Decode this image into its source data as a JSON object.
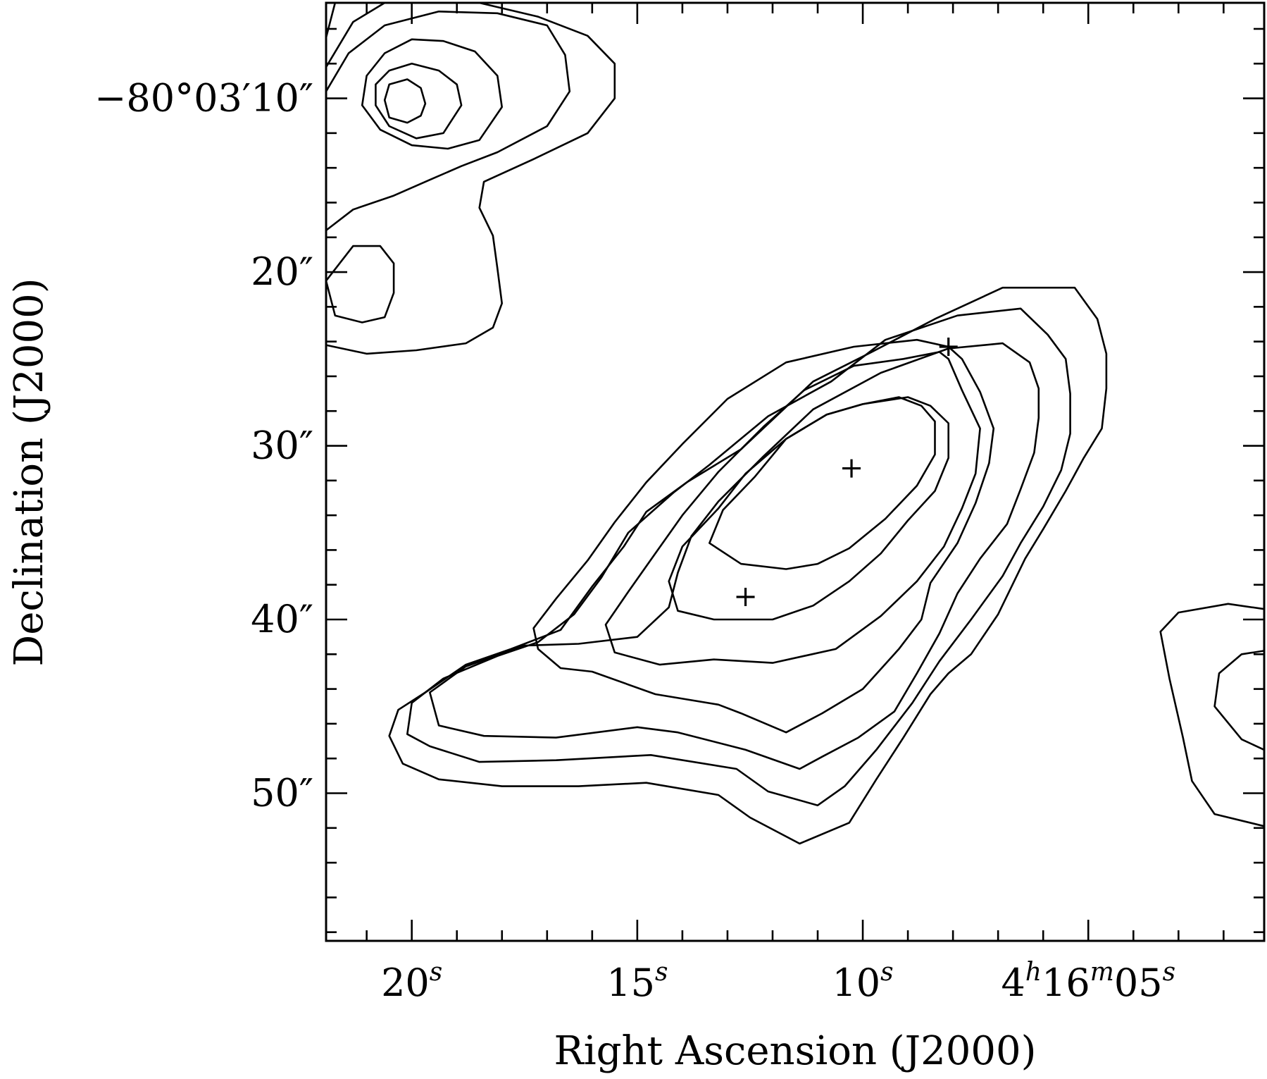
{
  "chart_data": {
    "type": "contour",
    "xlabel": "Right Ascension (J2000)",
    "ylabel": "Declination (J2000)",
    "x_ticks": [
      {
        "value": 20,
        "main": "20",
        "sup": "s"
      },
      {
        "value": 15,
        "main": "15",
        "sup": "s"
      },
      {
        "value": 10,
        "main": "10",
        "sup": "s"
      },
      {
        "value": 5,
        "main": "4",
        "sup": "h",
        "main2": "16",
        "sup2": "m",
        "main3": "05",
        "sup3": "s"
      }
    ],
    "y_ticks": [
      {
        "value": 10,
        "label": "−80°03′10″"
      },
      {
        "value": 20,
        "label": "20″"
      },
      {
        "value": 30,
        "label": "30″"
      },
      {
        "value": 40,
        "label": "40″"
      },
      {
        "value": 50,
        "label": "50″"
      }
    ],
    "xlim": [
      21.9,
      1.1
    ],
    "ylim": [
      4.5,
      58.5
    ],
    "grid": false,
    "markers": [
      {
        "ra": 10.25,
        "dec": 31.3,
        "symbol": "+"
      },
      {
        "ra": 8.1,
        "dec": 24.3,
        "symbol": "+"
      },
      {
        "ra": 12.6,
        "dec": 38.7,
        "symbol": "+"
      }
    ],
    "contours": [
      {
        "name": "main-1",
        "closed": true,
        "points": [
          [
            11.4,
            52.9
          ],
          [
            12.5,
            51.4
          ],
          [
            13.2,
            50.1
          ],
          [
            14.8,
            49.4
          ],
          [
            16.3,
            49.6
          ],
          [
            18.0,
            49.6
          ],
          [
            19.4,
            49.2
          ],
          [
            20.2,
            48.3
          ],
          [
            20.5,
            46.7
          ],
          [
            20.3,
            45.2
          ],
          [
            19.7,
            44.2
          ],
          [
            18.8,
            42.6
          ],
          [
            17.8,
            41.7
          ],
          [
            16.7,
            40.6
          ],
          [
            16.0,
            38.1
          ],
          [
            15.3,
            35.8
          ],
          [
            14.8,
            33.8
          ],
          [
            13.9,
            32.1
          ],
          [
            12.7,
            30.2
          ],
          [
            11.1,
            26.3
          ],
          [
            9.8,
            24.6
          ],
          [
            8.4,
            22.7
          ],
          [
            6.9,
            20.9
          ],
          [
            5.3,
            20.9
          ],
          [
            4.8,
            22.7
          ],
          [
            4.6,
            24.7
          ],
          [
            4.6,
            26.7
          ],
          [
            4.7,
            29.0
          ],
          [
            5.1,
            30.7
          ],
          [
            5.5,
            32.6
          ],
          [
            6.0,
            34.8
          ],
          [
            6.4,
            36.5
          ],
          [
            7.0,
            39.7
          ],
          [
            7.6,
            42.0
          ],
          [
            8.1,
            43.1
          ],
          [
            8.5,
            44.3
          ],
          [
            9.1,
            46.8
          ],
          [
            9.7,
            49.2
          ],
          [
            10.3,
            51.7
          ]
        ]
      },
      {
        "name": "main-2",
        "closed": true,
        "points": [
          [
            11.0,
            50.7
          ],
          [
            12.1,
            49.9
          ],
          [
            12.8,
            48.6
          ],
          [
            14.7,
            47.8
          ],
          [
            16.8,
            48.1
          ],
          [
            18.5,
            48.2
          ],
          [
            19.6,
            47.3
          ],
          [
            20.1,
            46.6
          ],
          [
            20.0,
            44.8
          ],
          [
            19.3,
            43.4
          ],
          [
            18.1,
            42.1
          ],
          [
            17.2,
            41.3
          ],
          [
            16.4,
            39.7
          ],
          [
            15.8,
            37.6
          ],
          [
            15.2,
            35.0
          ],
          [
            14.2,
            32.7
          ],
          [
            13.4,
            31.1
          ],
          [
            12.1,
            28.3
          ],
          [
            10.7,
            26.3
          ],
          [
            9.5,
            23.9
          ],
          [
            7.9,
            22.5
          ],
          [
            6.5,
            22.1
          ],
          [
            5.9,
            23.6
          ],
          [
            5.5,
            25.0
          ],
          [
            5.4,
            27.0
          ],
          [
            5.4,
            29.3
          ],
          [
            5.6,
            31.4
          ],
          [
            6.0,
            33.5
          ],
          [
            6.5,
            35.6
          ],
          [
            6.9,
            37.5
          ],
          [
            7.6,
            40.0
          ],
          [
            8.3,
            42.4
          ],
          [
            8.9,
            44.8
          ],
          [
            9.7,
            47.5
          ],
          [
            10.4,
            49.6
          ]
        ]
      },
      {
        "name": "main-3",
        "closed": true,
        "points": [
          [
            11.4,
            48.6
          ],
          [
            12.6,
            47.5
          ],
          [
            14.1,
            46.5
          ],
          [
            15.0,
            46.2
          ],
          [
            16.8,
            46.8
          ],
          [
            18.4,
            46.7
          ],
          [
            19.4,
            46.1
          ],
          [
            19.6,
            44.2
          ],
          [
            18.8,
            42.7
          ],
          [
            17.5,
            41.5
          ],
          [
            16.3,
            41.4
          ],
          [
            15.0,
            41.0
          ],
          [
            14.3,
            39.3
          ],
          [
            14.1,
            37.3
          ],
          [
            13.8,
            35.2
          ],
          [
            13.2,
            33.2
          ],
          [
            12.2,
            30.6
          ],
          [
            11.1,
            27.9
          ],
          [
            9.6,
            25.8
          ],
          [
            8.1,
            24.4
          ],
          [
            6.9,
            24.1
          ],
          [
            6.3,
            25.2
          ],
          [
            6.1,
            26.7
          ],
          [
            6.1,
            28.4
          ],
          [
            6.2,
            30.4
          ],
          [
            6.5,
            32.5
          ],
          [
            6.8,
            34.5
          ],
          [
            7.4,
            36.5
          ],
          [
            7.9,
            38.5
          ],
          [
            8.3,
            40.8
          ],
          [
            8.8,
            43.1
          ],
          [
            9.3,
            45.3
          ],
          [
            10.1,
            46.8
          ],
          [
            10.9,
            47.9
          ]
        ]
      },
      {
        "name": "main-4",
        "closed": true,
        "points": [
          [
            11.7,
            46.5
          ],
          [
            12.7,
            45.4
          ],
          [
            13.2,
            44.9
          ],
          [
            14.6,
            44.3
          ],
          [
            16.0,
            43.0
          ],
          [
            16.7,
            42.8
          ],
          [
            17.2,
            41.7
          ],
          [
            17.3,
            40.5
          ],
          [
            16.8,
            38.8
          ],
          [
            16.1,
            36.6
          ],
          [
            15.5,
            34.4
          ],
          [
            14.8,
            32.1
          ],
          [
            14.0,
            29.9
          ],
          [
            13.0,
            27.3
          ],
          [
            11.7,
            25.2
          ],
          [
            10.2,
            24.3
          ],
          [
            8.8,
            23.9
          ],
          [
            8.1,
            24.3
          ],
          [
            7.8,
            25.0
          ],
          [
            7.4,
            26.9
          ],
          [
            7.1,
            29.0
          ],
          [
            7.2,
            31.0
          ],
          [
            7.5,
            33.3
          ],
          [
            7.9,
            35.6
          ],
          [
            8.5,
            37.9
          ],
          [
            8.7,
            40.0
          ],
          [
            9.2,
            41.7
          ],
          [
            10.0,
            44.0
          ],
          [
            10.9,
            45.4
          ]
        ]
      },
      {
        "name": "main-5",
        "closed": true,
        "points": [
          [
            12.0,
            42.5
          ],
          [
            13.3,
            42.3
          ],
          [
            14.5,
            42.6
          ],
          [
            15.5,
            41.9
          ],
          [
            15.7,
            40.3
          ],
          [
            15.2,
            38.4
          ],
          [
            14.6,
            36.2
          ],
          [
            14.0,
            34.0
          ],
          [
            13.2,
            31.5
          ],
          [
            12.2,
            28.9
          ],
          [
            11.3,
            26.8
          ],
          [
            10.2,
            25.4
          ],
          [
            9.1,
            25.0
          ],
          [
            8.3,
            24.6
          ],
          [
            8.1,
            25.0
          ],
          [
            7.8,
            26.8
          ],
          [
            7.4,
            29.0
          ],
          [
            7.5,
            31.6
          ],
          [
            7.8,
            33.6
          ],
          [
            8.2,
            35.8
          ],
          [
            8.8,
            37.8
          ],
          [
            9.6,
            39.8
          ],
          [
            10.6,
            41.7
          ]
        ]
      },
      {
        "name": "main-6",
        "closed": true,
        "points": [
          [
            12.0,
            40.0
          ],
          [
            13.3,
            40.0
          ],
          [
            14.1,
            39.5
          ],
          [
            14.3,
            37.8
          ],
          [
            14.0,
            35.8
          ],
          [
            13.2,
            33.6
          ],
          [
            12.6,
            31.6
          ],
          [
            11.7,
            29.6
          ],
          [
            10.8,
            28.2
          ],
          [
            10.0,
            27.6
          ],
          [
            9.0,
            27.2
          ],
          [
            8.5,
            27.7
          ],
          [
            8.1,
            28.7
          ],
          [
            8.1,
            30.7
          ],
          [
            8.4,
            32.6
          ],
          [
            9.0,
            34.3
          ],
          [
            9.6,
            36.2
          ],
          [
            10.3,
            37.8
          ],
          [
            11.1,
            39.2
          ]
        ]
      },
      {
        "name": "main-7",
        "closed": true,
        "points": [
          [
            11.7,
            37.1
          ],
          [
            12.7,
            36.8
          ],
          [
            13.4,
            35.6
          ],
          [
            13.1,
            33.7
          ],
          [
            12.4,
            31.8
          ],
          [
            11.7,
            29.6
          ],
          [
            10.8,
            28.2
          ],
          [
            10.0,
            27.6
          ],
          [
            9.2,
            27.2
          ],
          [
            8.7,
            27.7
          ],
          [
            8.4,
            28.6
          ],
          [
            8.4,
            30.5
          ],
          [
            8.8,
            32.3
          ],
          [
            9.5,
            34.2
          ],
          [
            10.3,
            35.9
          ],
          [
            11.0,
            36.8
          ]
        ]
      },
      {
        "name": "nw-1",
        "closed": false,
        "points": [
          [
            21.9,
            8.2
          ],
          [
            21.3,
            5.6
          ],
          [
            20.6,
            4.5
          ],
          [
            18.5,
            4.5
          ],
          [
            17.2,
            5.3
          ],
          [
            16.1,
            6.4
          ],
          [
            15.5,
            8.0
          ],
          [
            15.5,
            10.0
          ],
          [
            16.1,
            12.0
          ],
          [
            17.3,
            13.5
          ],
          [
            18.4,
            14.8
          ],
          [
            18.5,
            16.3
          ],
          [
            18.2,
            17.9
          ],
          [
            18.1,
            19.8
          ],
          [
            18.0,
            21.8
          ],
          [
            18.2,
            23.2
          ],
          [
            18.8,
            24.1
          ],
          [
            19.9,
            24.5
          ],
          [
            21.0,
            24.7
          ],
          [
            21.9,
            24.2
          ]
        ]
      },
      {
        "name": "nw-2",
        "closed": false,
        "points": [
          [
            21.9,
            9.6
          ],
          [
            21.4,
            7.4
          ],
          [
            20.6,
            5.8
          ],
          [
            19.4,
            5.0
          ],
          [
            18.1,
            5.1
          ],
          [
            17.0,
            5.8
          ],
          [
            16.6,
            7.5
          ],
          [
            16.5,
            9.6
          ],
          [
            17.0,
            11.6
          ],
          [
            18.1,
            13.1
          ],
          [
            18.9,
            13.9
          ],
          [
            19.7,
            14.8
          ],
          [
            20.4,
            15.6
          ],
          [
            21.3,
            16.4
          ],
          [
            21.9,
            17.6
          ]
        ]
      },
      {
        "name": "nw-3",
        "closed": true,
        "points": [
          [
            18.0,
            10.5
          ],
          [
            18.1,
            8.7
          ],
          [
            18.6,
            7.3
          ],
          [
            19.3,
            6.7
          ],
          [
            20.0,
            6.6
          ],
          [
            20.6,
            7.4
          ],
          [
            21.0,
            8.7
          ],
          [
            21.1,
            10.4
          ],
          [
            20.7,
            11.8
          ],
          [
            20.0,
            12.7
          ],
          [
            19.2,
            12.9
          ],
          [
            18.5,
            12.4
          ]
        ]
      },
      {
        "name": "nw-4",
        "closed": true,
        "points": [
          [
            18.9,
            10.4
          ],
          [
            19.0,
            9.2
          ],
          [
            19.4,
            8.4
          ],
          [
            20.0,
            8.0
          ],
          [
            20.5,
            8.4
          ],
          [
            20.8,
            9.2
          ],
          [
            20.8,
            10.4
          ],
          [
            20.5,
            11.6
          ],
          [
            19.9,
            12.3
          ],
          [
            19.3,
            12.0
          ]
        ]
      },
      {
        "name": "nw-5",
        "closed": true,
        "points": [
          [
            19.7,
            10.3
          ],
          [
            19.8,
            9.4
          ],
          [
            20.1,
            8.9
          ],
          [
            20.5,
            9.2
          ],
          [
            20.6,
            10.1
          ],
          [
            20.5,
            11.1
          ],
          [
            20.1,
            11.4
          ],
          [
            19.8,
            11.0
          ]
        ]
      },
      {
        "name": "nw-6",
        "closed": true,
        "points": [
          [
            20.7,
            18.5
          ],
          [
            21.3,
            18.5
          ],
          [
            21.9,
            20.5
          ],
          [
            21.7,
            22.5
          ],
          [
            21.1,
            22.9
          ],
          [
            20.6,
            22.6
          ],
          [
            20.4,
            21.2
          ],
          [
            20.4,
            19.5
          ]
        ]
      },
      {
        "name": "nw-7",
        "closed": false,
        "points": [
          [
            21.9,
            6.5
          ],
          [
            21.7,
            4.5
          ]
        ]
      },
      {
        "name": "se-1",
        "closed": false,
        "points": [
          [
            1.1,
            51.9
          ],
          [
            2.2,
            51.2
          ],
          [
            2.7,
            49.3
          ],
          [
            2.9,
            46.8
          ],
          [
            3.2,
            43.4
          ],
          [
            3.4,
            40.7
          ],
          [
            3.0,
            39.6
          ],
          [
            1.9,
            39.1
          ],
          [
            1.1,
            39.4
          ]
        ]
      },
      {
        "name": "se-2",
        "closed": false,
        "points": [
          [
            1.1,
            47.5
          ],
          [
            1.6,
            46.9
          ],
          [
            2.2,
            45.0
          ],
          [
            2.1,
            43.1
          ],
          [
            1.6,
            42.0
          ],
          [
            1.1,
            41.8
          ]
        ]
      }
    ]
  }
}
